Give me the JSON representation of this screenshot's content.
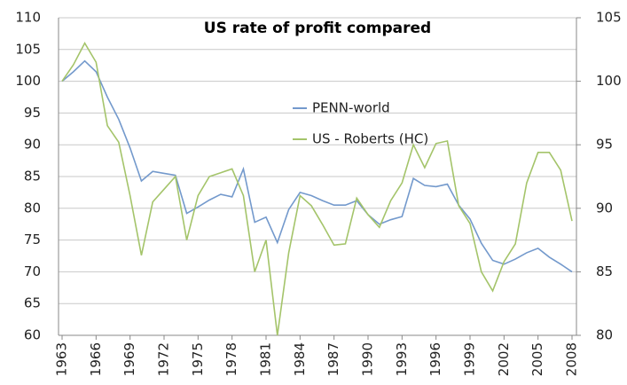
{
  "chart_data": {
    "type": "line",
    "title": "US rate of profit compared",
    "x": [
      1963,
      1964,
      1965,
      1966,
      1967,
      1968,
      1969,
      1970,
      1971,
      1972,
      1973,
      1974,
      1975,
      1976,
      1977,
      1978,
      1979,
      1980,
      1981,
      1982,
      1983,
      1984,
      1985,
      1986,
      1987,
      1988,
      1989,
      1990,
      1991,
      1992,
      1993,
      1994,
      1995,
      1996,
      1997,
      1998,
      1999,
      2000,
      2001,
      2002,
      2003,
      2004,
      2005,
      2006,
      2007,
      2008
    ],
    "xlim": [
      1963,
      2008
    ],
    "xticks": [
      1963,
      1966,
      1969,
      1972,
      1975,
      1978,
      1981,
      1984,
      1987,
      1990,
      1993,
      1996,
      1999,
      2002,
      2005,
      2008
    ],
    "ylim": [
      60,
      110
    ],
    "yticks": [
      60,
      65,
      70,
      75,
      80,
      85,
      90,
      95,
      100,
      105,
      110
    ],
    "y2lim": [
      80,
      105
    ],
    "y2ticks": [
      80,
      85,
      90,
      95,
      100,
      105
    ],
    "grid": true,
    "legend": "center",
    "series": [
      {
        "name": "PENN-world",
        "color": "#7399cc",
        "axis": "y",
        "values": [
          100,
          101.5,
          103.2,
          101.5,
          97.5,
          94,
          89.5,
          84.3,
          85.8,
          85.5,
          85.2,
          79.2,
          80.2,
          81.3,
          82.2,
          81.8,
          86.2,
          77.8,
          78.6,
          74.6,
          79.8,
          82.5,
          82,
          81.2,
          80.5,
          80.5,
          81.2,
          79,
          77.5,
          78.2,
          78.7,
          84.7,
          83.6,
          83.4,
          83.8,
          80.5,
          78.3,
          74.5,
          71.8,
          71.2,
          72,
          73,
          73.7,
          72.3,
          71.2,
          70
        ]
      },
      {
        "name": "US - Roberts (HC)",
        "color": "#a4c46a",
        "axis": "y2",
        "values": [
          100,
          101.3,
          103,
          101.5,
          96.5,
          95.2,
          91,
          86.3,
          90.5,
          91.5,
          92.5,
          87.5,
          91,
          92.5,
          92.8,
          93.1,
          91,
          85,
          87.5,
          80,
          86.5,
          91,
          90.2,
          88.7,
          87.1,
          87.2,
          90.8,
          89.5,
          88.5,
          90.6,
          92,
          95,
          93.2,
          95.1,
          95.3,
          90.2,
          88.8,
          85,
          83.5,
          85.8,
          87.2,
          92,
          94.4,
          94.4,
          93,
          89
        ]
      }
    ]
  }
}
